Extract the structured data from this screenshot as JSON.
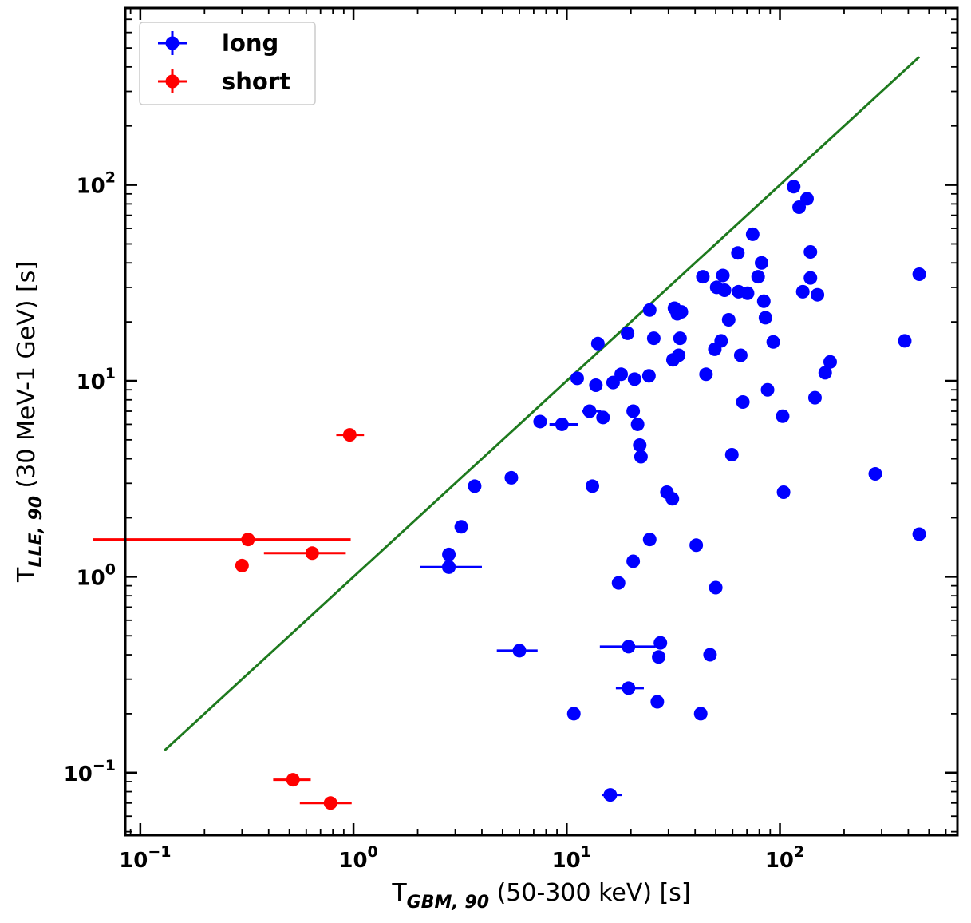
{
  "chart_data": {
    "type": "scatter",
    "xscale": "log",
    "yscale": "log",
    "xlim": [
      0.085,
      680
    ],
    "ylim": [
      0.048,
      800
    ],
    "xlabel": {
      "base": "T",
      "sub": "GBM, 90",
      "rest": " (50-300 keV) [s]"
    },
    "ylabel": {
      "base": "T",
      "sub": "LLE, 90",
      "rest": " (30 MeV-1 GeV) [s]"
    },
    "xticks": [
      {
        "value": 0.1,
        "base": "10",
        "exp": "−1"
      },
      {
        "value": 1,
        "base": "10",
        "exp": "0"
      },
      {
        "value": 10,
        "base": "10",
        "exp": "1"
      },
      {
        "value": 100,
        "base": "10",
        "exp": "2"
      }
    ],
    "yticks": [
      {
        "value": 0.1,
        "base": "10",
        "exp": "−1"
      },
      {
        "value": 1,
        "base": "10",
        "exp": "0"
      },
      {
        "value": 10,
        "base": "10",
        "exp": "1"
      },
      {
        "value": 100,
        "base": "10",
        "exp": "2"
      }
    ],
    "reference_line": {
      "x": [
        0.13,
        450
      ],
      "y": [
        0.13,
        450
      ],
      "color": "#1e7a1e"
    },
    "legend": {
      "position": "top-left",
      "entries": [
        {
          "label": "long",
          "color": "#0000ff"
        },
        {
          "label": "short",
          "color": "#ff0000"
        }
      ]
    },
    "series": [
      {
        "name": "long",
        "color": "#0000ff",
        "points": [
          {
            "x": 2.8,
            "y": 1.3
          },
          {
            "x": 2.8,
            "y": 1.12
          },
          {
            "x": 2.8,
            "y": 1.12,
            "xerr": [
              2.05,
              4.0
            ]
          },
          {
            "x": 3.2,
            "y": 1.8
          },
          {
            "x": 3.7,
            "y": 2.9
          },
          {
            "x": 5.5,
            "y": 3.2
          },
          {
            "x": 6.0,
            "y": 0.42,
            "xerr": [
              4.7,
              7.3
            ]
          },
          {
            "x": 7.5,
            "y": 6.2
          },
          {
            "x": 9.5,
            "y": 6.0,
            "xerr": [
              8.3,
              11.3
            ]
          },
          {
            "x": 10.8,
            "y": 0.2
          },
          {
            "x": 11.2,
            "y": 10.3
          },
          {
            "x": 12.8,
            "y": 7.0,
            "xerr": [
              11.8,
              14.5
            ]
          },
          {
            "x": 13.2,
            "y": 2.9
          },
          {
            "x": 13.7,
            "y": 9.5
          },
          {
            "x": 14.0,
            "y": 15.5
          },
          {
            "x": 14.8,
            "y": 6.5
          },
          {
            "x": 16.0,
            "y": 0.077,
            "xerr": [
              14.6,
              18.2
            ]
          },
          {
            "x": 16.5,
            "y": 9.8
          },
          {
            "x": 17.5,
            "y": 0.93
          },
          {
            "x": 18.0,
            "y": 10.8
          },
          {
            "x": 19.3,
            "y": 17.5
          },
          {
            "x": 19.5,
            "y": 0.44,
            "xerr": [
              14.3,
              26.0
            ]
          },
          {
            "x": 19.5,
            "y": 0.27,
            "xerr": [
              17.0,
              23.0
            ]
          },
          {
            "x": 20.5,
            "y": 7.0
          },
          {
            "x": 20.5,
            "y": 1.2
          },
          {
            "x": 20.8,
            "y": 10.2
          },
          {
            "x": 21.5,
            "y": 6.0
          },
          {
            "x": 22.0,
            "y": 4.7
          },
          {
            "x": 22.3,
            "y": 4.1
          },
          {
            "x": 24.3,
            "y": 10.6
          },
          {
            "x": 24.5,
            "y": 23.0
          },
          {
            "x": 24.5,
            "y": 1.55
          },
          {
            "x": 25.6,
            "y": 16.5
          },
          {
            "x": 26.6,
            "y": 0.23
          },
          {
            "x": 27.0,
            "y": 0.39
          },
          {
            "x": 27.5,
            "y": 0.46
          },
          {
            "x": 29.5,
            "y": 2.7
          },
          {
            "x": 31.3,
            "y": 2.5
          },
          {
            "x": 31.5,
            "y": 12.8
          },
          {
            "x": 32.0,
            "y": 23.5
          },
          {
            "x": 33.0,
            "y": 22.0
          },
          {
            "x": 33.5,
            "y": 13.5
          },
          {
            "x": 34.0,
            "y": 16.5
          },
          {
            "x": 34.5,
            "y": 22.5
          },
          {
            "x": 40.5,
            "y": 1.45
          },
          {
            "x": 42.5,
            "y": 0.2
          },
          {
            "x": 43.5,
            "y": 34.0
          },
          {
            "x": 45.0,
            "y": 10.8
          },
          {
            "x": 47.0,
            "y": 0.4
          },
          {
            "x": 49.5,
            "y": 14.5
          },
          {
            "x": 50.0,
            "y": 0.88
          },
          {
            "x": 50.5,
            "y": 30.0
          },
          {
            "x": 53.0,
            "y": 16.0
          },
          {
            "x": 54.0,
            "y": 34.5
          },
          {
            "x": 55.0,
            "y": 29.0
          },
          {
            "x": 57.5,
            "y": 20.5
          },
          {
            "x": 59.5,
            "y": 4.2
          },
          {
            "x": 63.5,
            "y": 45.0
          },
          {
            "x": 64.0,
            "y": 28.5
          },
          {
            "x": 65.5,
            "y": 13.5
          },
          {
            "x": 67.0,
            "y": 7.8
          },
          {
            "x": 70.5,
            "y": 28.0
          },
          {
            "x": 74.5,
            "y": 56.0
          },
          {
            "x": 79.0,
            "y": 34.0
          },
          {
            "x": 82.0,
            "y": 40.0
          },
          {
            "x": 84.0,
            "y": 25.5
          },
          {
            "x": 85.5,
            "y": 21.0
          },
          {
            "x": 87.5,
            "y": 9.0
          },
          {
            "x": 93.0,
            "y": 15.8
          },
          {
            "x": 103.0,
            "y": 6.6
          },
          {
            "x": 104.0,
            "y": 2.7
          },
          {
            "x": 116.0,
            "y": 98.0
          },
          {
            "x": 123.0,
            "y": 77.0
          },
          {
            "x": 128.0,
            "y": 28.5
          },
          {
            "x": 134.0,
            "y": 85.0
          },
          {
            "x": 139.0,
            "y": 45.5
          },
          {
            "x": 139.0,
            "y": 33.5
          },
          {
            "x": 146.0,
            "y": 8.2
          },
          {
            "x": 150.0,
            "y": 27.5
          },
          {
            "x": 163.0,
            "y": 11.0
          },
          {
            "x": 172.0,
            "y": 12.5
          },
          {
            "x": 280.0,
            "y": 3.35
          },
          {
            "x": 385.0,
            "y": 16.0
          },
          {
            "x": 450.0,
            "y": 35.0
          },
          {
            "x": 450.0,
            "y": 1.65
          }
        ]
      },
      {
        "name": "short",
        "color": "#ff0000",
        "points": [
          {
            "x": 0.32,
            "y": 1.55,
            "xerr": [
              0.06,
              0.97
            ]
          },
          {
            "x": 0.3,
            "y": 1.14
          },
          {
            "x": 0.64,
            "y": 1.32,
            "xerr": [
              0.38,
              0.92
            ]
          },
          {
            "x": 0.96,
            "y": 5.3,
            "xerr": [
              0.83,
              1.12
            ]
          },
          {
            "x": 0.52,
            "y": 0.092,
            "xerr": [
              0.42,
              0.63
            ]
          },
          {
            "x": 0.78,
            "y": 0.07,
            "xerr": [
              0.56,
              0.98
            ]
          }
        ]
      }
    ]
  }
}
